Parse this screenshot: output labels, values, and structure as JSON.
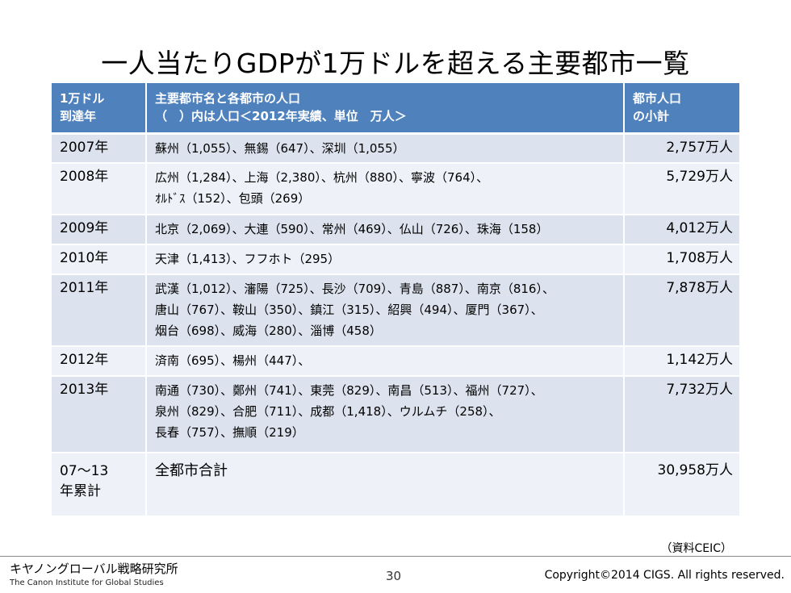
{
  "title": "一人当たりGDPが1万ドルを超える主要都市一覧",
  "table": {
    "header": {
      "col1_line1": "1万ドル",
      "col1_line2": "到達年",
      "col2_line1": "主要都市名と各都市の人口",
      "col2_line2": "（　）内は人口＜2012年実績、単位　万人＞",
      "col3_line1": "都市人口",
      "col3_line2": "の小計"
    },
    "rows": [
      {
        "year": "2007年",
        "lines": [
          "蘇州（1,055）、無錫（647）、深圳（1,055）"
        ],
        "total": "2,757万人"
      },
      {
        "year": "2008年",
        "lines": [
          "広州（1,284）、上海（2,380）、杭州（880）、寧波（764）、",
          "ｵﾙﾄﾞｽ（152）、包頭（269）"
        ],
        "total": "5,729万人"
      },
      {
        "year": "2009年",
        "lines": [
          "北京（2,069）、大連（590）、常州（469）、仏山（726）、珠海（158）"
        ],
        "total": "4,012万人"
      },
      {
        "year": "2010年",
        "lines": [
          "天津（1,413）、フフホト（295）"
        ],
        "total": "1,708万人"
      },
      {
        "year": "2011年",
        "lines": [
          "武漢（1,012）、瀋陽（725）、長沙（709）、青島（887）、南京（816）、",
          "唐山（767）、鞍山（350）、鎮江（315）、紹興（494）、厦門（367）、",
          "烟台（698）、威海（280）、淄博（458）"
        ],
        "total": "7,878万人"
      },
      {
        "year": "2012年",
        "lines": [
          "済南（695）、楊州（447）、"
        ],
        "total": "1,142万人"
      },
      {
        "year": "2013年",
        "lines": [
          "南通（730）、鄭州（741）、東莞（829）、南昌（513）、福州（727）、",
          "泉州（829）、合肥（711）、成都（1,418）、ウルムチ（258）、",
          "長春（757）、撫順（219）"
        ],
        "total": "7,732万人"
      },
      {
        "year_line1": "07～13",
        "year_line2": "年累計",
        "summary": "全都市合計",
        "total": "30,958万人"
      }
    ]
  },
  "source": "（資料CEIC）",
  "footer": {
    "org_ja": "キヤノングローバル戦略研究所",
    "org_en": "The Canon Institute for Global Studies",
    "page": "30",
    "copyright": "Copyright©2014 CIGS. All rights reserved."
  }
}
